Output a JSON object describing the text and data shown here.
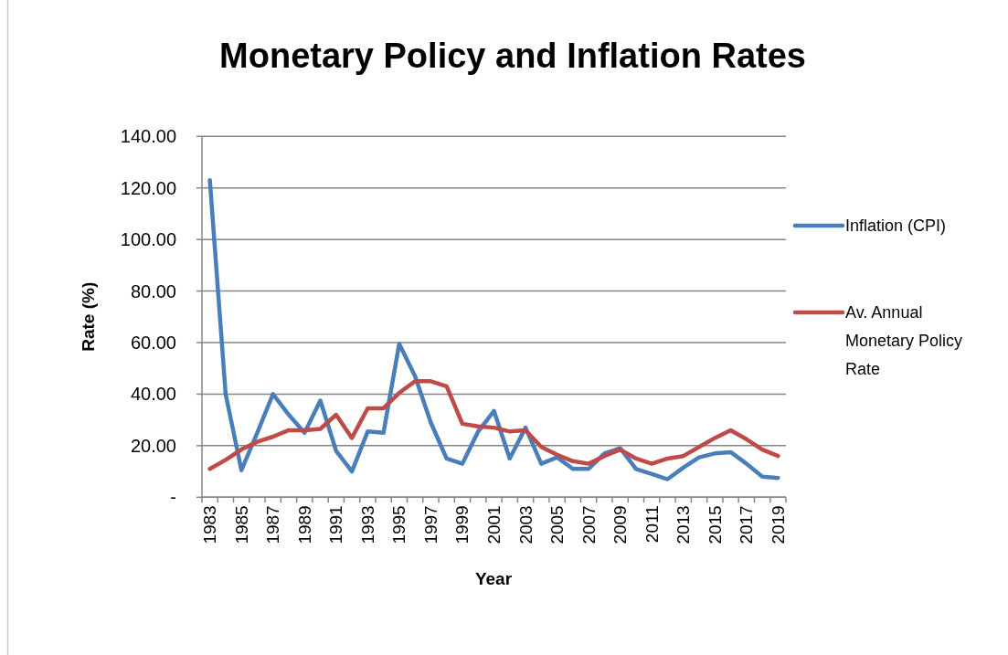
{
  "chart_data": {
    "type": "line",
    "title": "Monetary Policy and Inflation Rates",
    "xlabel": "Year",
    "ylabel": "Rate (%)",
    "categories": [
      "1983",
      null,
      "1985",
      null,
      "1987",
      null,
      "1989",
      null,
      "1991",
      null,
      "1993",
      null,
      "1995",
      null,
      "1997",
      null,
      "1999",
      null,
      "2001",
      null,
      "2003",
      null,
      "2005",
      null,
      "2007",
      null,
      "2009",
      null,
      "2011",
      null,
      "2013",
      null,
      "2015",
      null,
      "2017",
      null,
      "2019"
    ],
    "series": [
      {
        "name": "Inflation (CPI)",
        "color": "#4a7ebb",
        "values": [
          123,
          40,
          10.5,
          25,
          40,
          32,
          25,
          37.5,
          18,
          10,
          25.5,
          25,
          59.5,
          47,
          29,
          15,
          13,
          25.5,
          33.5,
          15,
          27,
          13,
          15.5,
          11,
          11,
          17,
          19,
          11,
          9,
          7,
          11.5,
          15.5,
          17,
          17.5,
          13,
          8,
          7.5
        ]
      },
      {
        "name": "Av. Annual Monetary Policy Rate",
        "color": "#be4b48",
        "values": [
          11,
          14.5,
          18.5,
          21.5,
          23.5,
          26,
          26,
          26.5,
          32,
          23,
          34.5,
          34.5,
          40.5,
          45,
          45,
          43,
          28.5,
          27.5,
          27,
          25.5,
          26,
          19.5,
          16.5,
          14,
          13,
          16,
          18.5,
          15,
          13,
          15,
          16,
          19.5,
          23,
          26,
          22.5,
          18.5,
          16
        ]
      }
    ],
    "ylim": [
      0,
      140
    ],
    "yticks": [
      {
        "value": 0,
        "label": "-"
      },
      {
        "value": 20,
        "label": "20.00"
      },
      {
        "value": 40,
        "label": "40.00"
      },
      {
        "value": 60,
        "label": "60.00"
      },
      {
        "value": 80,
        "label": "80.00"
      },
      {
        "value": 100,
        "label": "100.00"
      },
      {
        "value": 120,
        "label": "120.00"
      },
      {
        "value": 140,
        "label": "140.00"
      }
    ],
    "grid": "y",
    "legend": "right"
  }
}
